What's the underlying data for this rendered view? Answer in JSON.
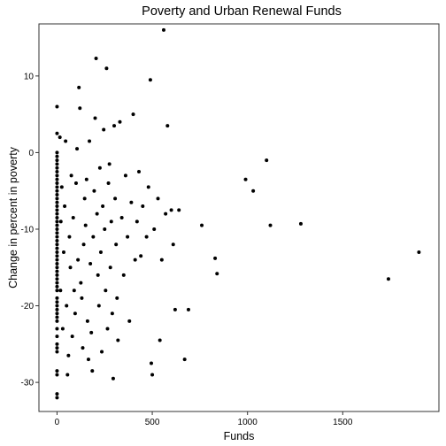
{
  "chart_data": {
    "type": "scatter",
    "title": "Poverty and Urban Renewal Funds",
    "xlabel": "Funds",
    "ylabel": "Change in percent in poverty",
    "xlim": [
      -95,
      2005
    ],
    "ylim": [
      -33.8,
      16.8
    ],
    "x_ticks": [
      0,
      500,
      1000,
      1500
    ],
    "y_ticks": [
      -30,
      -20,
      -10,
      0,
      10
    ],
    "x_tick_labels": [
      "0",
      "500",
      "1000",
      "1500"
    ],
    "y_tick_labels": [
      "-30",
      "-20",
      "-10",
      "0",
      "10"
    ],
    "grid": false,
    "legend": "none",
    "colors": {
      "point": "#000000",
      "frame": "#333333",
      "background": "#ffffff"
    },
    "points": [
      [
        0,
        -32
      ],
      [
        0,
        -31.5
      ],
      [
        0,
        -29
      ],
      [
        0,
        -28.5
      ],
      [
        0,
        -26
      ],
      [
        0,
        -25.5
      ],
      [
        0,
        -25
      ],
      [
        0,
        -24
      ],
      [
        0,
        -23
      ],
      [
        0,
        -22
      ],
      [
        0,
        -21.5
      ],
      [
        0,
        -21
      ],
      [
        0,
        -20.5
      ],
      [
        0,
        -20
      ],
      [
        0,
        -19.5
      ],
      [
        0,
        -19
      ],
      [
        0,
        -18
      ],
      [
        0,
        -17.5
      ],
      [
        0,
        -17
      ],
      [
        0,
        -16.5
      ],
      [
        0,
        -16
      ],
      [
        0,
        -15.5
      ],
      [
        0,
        -15
      ],
      [
        0,
        -14.5
      ],
      [
        0,
        -14
      ],
      [
        0,
        -13.5
      ],
      [
        0,
        -13
      ],
      [
        0,
        -12.5
      ],
      [
        0,
        -12
      ],
      [
        0,
        -11.5
      ],
      [
        0,
        -11
      ],
      [
        0,
        -10.5
      ],
      [
        0,
        -10
      ],
      [
        0,
        -9.5
      ],
      [
        0,
        -9
      ],
      [
        0,
        -8.5
      ],
      [
        0,
        -8
      ],
      [
        0,
        -7.5
      ],
      [
        0,
        -7
      ],
      [
        0,
        -6.5
      ],
      [
        0,
        -6
      ],
      [
        0,
        -5.5
      ],
      [
        0,
        -5
      ],
      [
        0,
        -4.5
      ],
      [
        0,
        -4
      ],
      [
        0,
        -3.5
      ],
      [
        0,
        -3
      ],
      [
        0,
        -2.5
      ],
      [
        0,
        -2
      ],
      [
        0,
        -1.5
      ],
      [
        0,
        -1
      ],
      [
        0,
        -0.5
      ],
      [
        0,
        0
      ],
      [
        0,
        2.5
      ],
      [
        0,
        6
      ],
      [
        15,
        2
      ],
      [
        18,
        -18
      ],
      [
        20,
        -9
      ],
      [
        25,
        -4.5
      ],
      [
        30,
        -23
      ],
      [
        35,
        -13
      ],
      [
        40,
        -7
      ],
      [
        45,
        1.5
      ],
      [
        50,
        -20
      ],
      [
        55,
        -29
      ],
      [
        60,
        -26.5
      ],
      [
        65,
        -11
      ],
      [
        70,
        -15
      ],
      [
        75,
        -3
      ],
      [
        80,
        -24
      ],
      [
        85,
        -8.5
      ],
      [
        90,
        -18
      ],
      [
        95,
        -21
      ],
      [
        100,
        -4
      ],
      [
        105,
        0.5
      ],
      [
        110,
        -14
      ],
      [
        115,
        8.5
      ],
      [
        120,
        5.8
      ],
      [
        125,
        -17
      ],
      [
        130,
        -19
      ],
      [
        135,
        -25.5
      ],
      [
        140,
        -12
      ],
      [
        145,
        -6
      ],
      [
        150,
        -9.5
      ],
      [
        155,
        -3.5
      ],
      [
        160,
        -22
      ],
      [
        165,
        -27
      ],
      [
        170,
        1.5
      ],
      [
        175,
        -14.5
      ],
      [
        180,
        -23.5
      ],
      [
        185,
        -28.5
      ],
      [
        190,
        -11
      ],
      [
        195,
        -5
      ],
      [
        200,
        4.5
      ],
      [
        205,
        12.3
      ],
      [
        210,
        -8
      ],
      [
        215,
        -16
      ],
      [
        220,
        -20
      ],
      [
        225,
        -2
      ],
      [
        230,
        -13
      ],
      [
        235,
        -26
      ],
      [
        240,
        -7
      ],
      [
        245,
        3
      ],
      [
        250,
        -10
      ],
      [
        255,
        -18
      ],
      [
        260,
        11
      ],
      [
        265,
        -23
      ],
      [
        270,
        -4
      ],
      [
        275,
        -1.5
      ],
      [
        280,
        -15
      ],
      [
        285,
        -9
      ],
      [
        290,
        -21
      ],
      [
        295,
        -29.5
      ],
      [
        300,
        3.5
      ],
      [
        305,
        -6
      ],
      [
        310,
        -12
      ],
      [
        315,
        -19
      ],
      [
        320,
        -24.5
      ],
      [
        330,
        4
      ],
      [
        340,
        -8.5
      ],
      [
        350,
        -16
      ],
      [
        360,
        -3
      ],
      [
        370,
        -11
      ],
      [
        380,
        -22
      ],
      [
        390,
        -6.5
      ],
      [
        400,
        5
      ],
      [
        410,
        -14
      ],
      [
        420,
        -9
      ],
      [
        430,
        -2.5
      ],
      [
        440,
        -13.5
      ],
      [
        450,
        -7
      ],
      [
        470,
        -11
      ],
      [
        480,
        -4.5
      ],
      [
        490,
        9.5
      ],
      [
        495,
        -27.5
      ],
      [
        500,
        -29
      ],
      [
        510,
        -10
      ],
      [
        530,
        -6
      ],
      [
        540,
        -24.5
      ],
      [
        550,
        -14
      ],
      [
        560,
        16
      ],
      [
        570,
        -8
      ],
      [
        580,
        3.5
      ],
      [
        600,
        -7.5
      ],
      [
        610,
        -12
      ],
      [
        620,
        -20.5
      ],
      [
        640,
        -7.5
      ],
      [
        670,
        -27
      ],
      [
        690,
        -20.5
      ],
      [
        760,
        -9.5
      ],
      [
        830,
        -13.8
      ],
      [
        840,
        -15.8
      ],
      [
        990,
        -3.5
      ],
      [
        1030,
        -5
      ],
      [
        1100,
        -1
      ],
      [
        1120,
        -9.5
      ],
      [
        1280,
        -9.3
      ],
      [
        1740,
        -16.5
      ],
      [
        1900,
        -13
      ]
    ]
  }
}
